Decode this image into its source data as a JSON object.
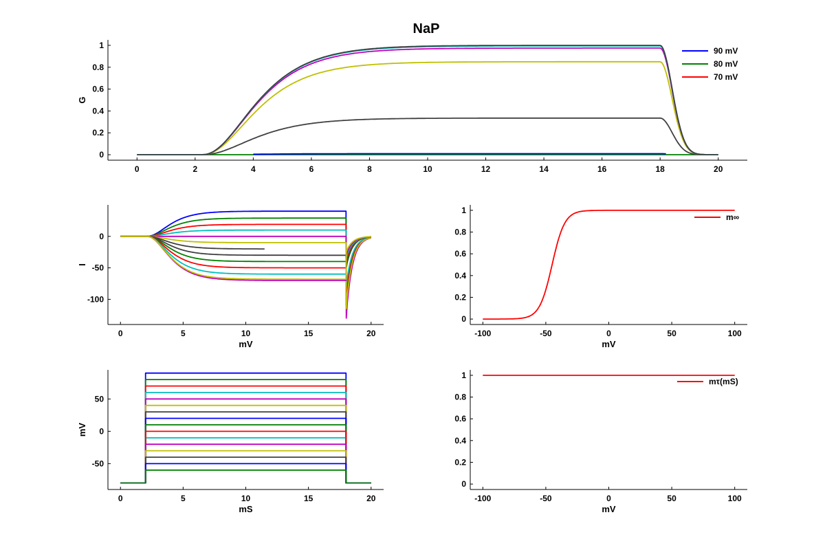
{
  "title": "NaP",
  "colors": {
    "blue": "#0000ff",
    "green": "#008000",
    "red": "#ff0000",
    "cyan": "#00bfbf",
    "magenta": "#bf00bf",
    "yellow": "#bfbf00",
    "darkgray": "#404040"
  },
  "chart_data": [
    {
      "id": "g",
      "type": "line",
      "ylabel": "G",
      "xlabel": "",
      "xlim": [
        -1,
        21
      ],
      "ylim": [
        -0.05,
        1.05
      ],
      "xticks": [
        0,
        2,
        4,
        6,
        8,
        10,
        12,
        14,
        16,
        18,
        20
      ],
      "yticks": [
        0,
        0.2,
        0.4,
        0.6,
        0.8,
        1
      ],
      "legend": {
        "placement": "top-right",
        "entries": [
          {
            "label": "90 mV",
            "color": "#0000ff"
          },
          {
            "label": "80 mV",
            "color": "#008000"
          },
          {
            "label": "70 mV",
            "color": "#ff0000"
          }
        ]
      },
      "pulse": {
        "start": 2,
        "end": 18,
        "t_end": 20,
        "tau_on": 1.3,
        "tau_off": 0.45,
        "delay": 0.15
      },
      "series": [
        {
          "color": "#008000",
          "plateau": 0.0
        },
        {
          "color": "#0000ff",
          "plateau": 0.01,
          "t_from": 4,
          "t_to": 18.2
        },
        {
          "color": "#404040",
          "plateau": 0.335
        },
        {
          "color": "#bfbf00",
          "plateau": 0.85
        },
        {
          "color": "#bf00bf",
          "plateau": 0.975
        },
        {
          "color": "#00bfbf",
          "plateau": 0.995
        },
        {
          "color": "#404040",
          "plateau": 1.0
        }
      ]
    },
    {
      "id": "i",
      "type": "line",
      "ylabel": "I",
      "xlabel": "mV",
      "xlim": [
        -1,
        21
      ],
      "ylim": [
        -140,
        50
      ],
      "xticks": [
        0,
        5,
        10,
        15,
        20
      ],
      "yticks": [
        -100,
        -50,
        0
      ],
      "pulse": {
        "start": 2,
        "end": 18,
        "t_end": 20,
        "tau_on": 1.3,
        "tau_off": 0.5
      },
      "series": [
        {
          "color": "#0000ff",
          "plateau": 40,
          "tail": -110
        },
        {
          "color": "#008000",
          "plateau": 29,
          "tail": -100
        },
        {
          "color": "#ff0000",
          "plateau": 19,
          "tail": -90
        },
        {
          "color": "#00bfbf",
          "plateau": 10,
          "tail": -80
        },
        {
          "color": "#bf00bf",
          "plateau": 0,
          "tail": -130
        },
        {
          "color": "#bfbf00",
          "plateau": -10,
          "tail": -115
        },
        {
          "color": "#404040",
          "plateau": -20,
          "tail": -60,
          "t_to": 11.5
        },
        {
          "color": "#404040",
          "plateau": -30,
          "tail": -50
        },
        {
          "color": "#008000",
          "plateau": -40,
          "tail": -45
        },
        {
          "color": "#ff0000",
          "plateau": -50,
          "tail": -40
        },
        {
          "color": "#00bfbf",
          "plateau": -60,
          "tail": -35
        },
        {
          "color": "#bf00bf",
          "plateau": -70,
          "tail": -30
        },
        {
          "color": "#bfbf00",
          "plateau": -68,
          "tail": -25
        }
      ]
    },
    {
      "id": "minf",
      "type": "line",
      "ylabel": "",
      "xlabel": "mV",
      "xlim": [
        -110,
        110
      ],
      "ylim": [
        -0.05,
        1.05
      ],
      "xticks": [
        -100,
        -50,
        0,
        50,
        100
      ],
      "yticks": [
        0,
        0.2,
        0.4,
        0.6,
        0.8,
        1
      ],
      "legend": {
        "placement": "top-right",
        "entries": [
          {
            "label": "m∞",
            "color": "#ff0000"
          }
        ]
      },
      "sigmoid": {
        "v_half": -45,
        "k": 5,
        "v_min": -100,
        "v_max": 100,
        "color": "#ff0000"
      }
    },
    {
      "id": "v",
      "type": "line",
      "ylabel": "mV",
      "xlabel": "mS",
      "xlim": [
        -1,
        21
      ],
      "ylim": [
        -90,
        95
      ],
      "xticks": [
        0,
        5,
        10,
        15,
        20
      ],
      "yticks": [
        -50,
        0,
        50
      ],
      "pulse": {
        "start": 2,
        "end": 18,
        "t_end": 20,
        "hold": -80
      },
      "series": [
        {
          "color": "#0000ff",
          "level": 90
        },
        {
          "color": "#008000",
          "level": 80
        },
        {
          "color": "#ff0000",
          "level": 70
        },
        {
          "color": "#00bfbf",
          "level": 60
        },
        {
          "color": "#bf00bf",
          "level": 50
        },
        {
          "color": "#bfbf00",
          "level": 40
        },
        {
          "color": "#404040",
          "level": 30
        },
        {
          "color": "#0000ff",
          "level": 20
        },
        {
          "color": "#008000",
          "level": 10
        },
        {
          "color": "#00bfbf",
          "level": -10
        },
        {
          "color": "#ff0000",
          "level": 0
        },
        {
          "color": "#bf00bf",
          "level": -20
        },
        {
          "color": "#bfbf00",
          "level": -30
        },
        {
          "color": "#404040",
          "level": -40
        },
        {
          "color": "#0000ff",
          "level": -50
        },
        {
          "color": "#008000",
          "level": -60
        }
      ]
    },
    {
      "id": "mtau",
      "type": "line",
      "ylabel": "",
      "xlabel": "mV",
      "xlim": [
        -110,
        110
      ],
      "ylim": [
        -0.05,
        1.05
      ],
      "xticks": [
        -100,
        -50,
        0,
        50,
        100
      ],
      "yticks": [
        0,
        0.2,
        0.4,
        0.6,
        0.8,
        1
      ],
      "legend": {
        "placement": "top-right",
        "entries": [
          {
            "label": "mτ(mS)",
            "color": "#ff0000"
          }
        ]
      },
      "constant": {
        "value": 1,
        "v_min": -100,
        "v_max": 100,
        "color": "#ff0000"
      }
    }
  ]
}
